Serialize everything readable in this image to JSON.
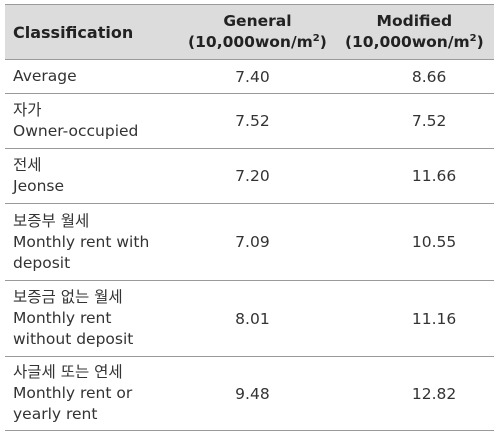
{
  "table": {
    "header": {
      "classification": "Classification",
      "general_title": "General",
      "general_unit_prefix": "(10,000won/m",
      "general_unit_sup": "2",
      "general_unit_suffix": ")",
      "modified_title": "Modified",
      "modified_unit_prefix": "(10,000won/m",
      "modified_unit_sup": "2",
      "modified_unit_suffix": ")"
    },
    "rows": [
      {
        "label_lines": [
          "Average"
        ],
        "general": "7.40",
        "modified": "8.66"
      },
      {
        "label_lines": [
          "자가",
          "Owner-occupied"
        ],
        "general": "7.52",
        "modified": "7.52"
      },
      {
        "label_lines": [
          "전세",
          "Jeonse"
        ],
        "general": "7.20",
        "modified": "11.66"
      },
      {
        "label_lines": [
          "보증부 월세",
          "Monthly rent with",
          "deposit"
        ],
        "general": "7.09",
        "modified": "10.55"
      },
      {
        "label_lines": [
          "보증금 없는 월세",
          "Monthly rent",
          "without deposit"
        ],
        "general": "8.01",
        "modified": "11.16"
      },
      {
        "label_lines": [
          "사글세 또는 연세",
          "Monthly rent or",
          "yearly rent"
        ],
        "general": "9.48",
        "modified": "12.82"
      }
    ]
  }
}
